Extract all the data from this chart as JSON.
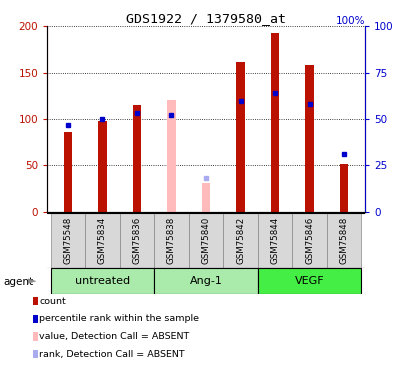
{
  "title": "GDS1922 / 1379580_at",
  "samples": [
    "GSM75548",
    "GSM75834",
    "GSM75836",
    "GSM75838",
    "GSM75840",
    "GSM75842",
    "GSM75844",
    "GSM75846",
    "GSM75848"
  ],
  "bar_width": 0.25,
  "red_values": [
    86,
    98,
    115,
    null,
    null,
    162,
    193,
    158,
    52
  ],
  "red_absent": [
    null,
    null,
    null,
    121,
    31,
    null,
    null,
    null,
    null
  ],
  "blue_values": [
    47,
    50,
    53,
    52,
    null,
    60,
    64,
    58,
    31
  ],
  "blue_absent": [
    null,
    null,
    null,
    null,
    18,
    null,
    null,
    null,
    null
  ],
  "red_color": "#bb1100",
  "red_absent_color": "#ffbbbb",
  "blue_color": "#0000cc",
  "blue_absent_color": "#aaaaee",
  "ylim_left": [
    0,
    200
  ],
  "ylim_right": [
    0,
    100
  ],
  "yticks_left": [
    0,
    50,
    100,
    150,
    200
  ],
  "yticks_right": [
    0,
    25,
    50,
    75,
    100
  ],
  "groups": [
    {
      "label": "untreated",
      "start": 0,
      "end": 2,
      "color": "#aaeaaa"
    },
    {
      "label": "Ang-1",
      "start": 3,
      "end": 5,
      "color": "#aaeaaa"
    },
    {
      "label": "VEGF",
      "start": 6,
      "end": 8,
      "color": "#44ee44"
    }
  ],
  "legend_items": [
    {
      "label": "count",
      "color": "#bb1100"
    },
    {
      "label": "percentile rank within the sample",
      "color": "#0000cc"
    },
    {
      "label": "value, Detection Call = ABSENT",
      "color": "#ffbbbb"
    },
    {
      "label": "rank, Detection Call = ABSENT",
      "color": "#aaaaee"
    }
  ]
}
